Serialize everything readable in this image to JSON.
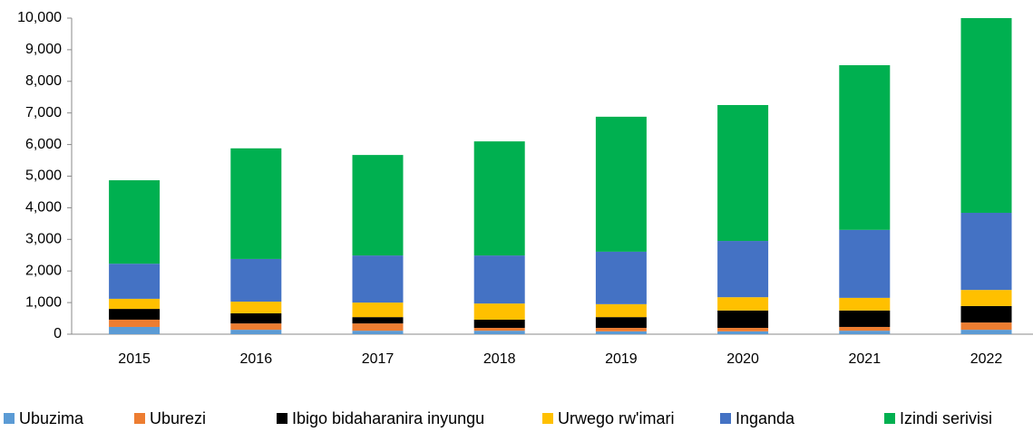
{
  "chart_data": {
    "type": "stacked_bar",
    "categories": [
      "2015",
      "2016",
      "2017",
      "2018",
      "2019",
      "2020",
      "2021",
      "2022"
    ],
    "series": [
      {
        "name": "Ubuzima",
        "color": "#5b9bd5",
        "values": [
          230,
          140,
          110,
          110,
          90,
          90,
          110,
          140
        ]
      },
      {
        "name": "Uburezi",
        "color": "#ed7d31",
        "values": [
          230,
          200,
          230,
          90,
          110,
          110,
          120,
          230
        ]
      },
      {
        "name": "Ibigo bidaharanira inyungu",
        "color": "#000000",
        "values": [
          340,
          320,
          200,
          260,
          340,
          550,
          520,
          520
        ]
      },
      {
        "name": "Urwego rw'imari",
        "color": "#ffc000",
        "values": [
          320,
          370,
          460,
          510,
          410,
          420,
          400,
          510
        ]
      },
      {
        "name": "Inganda",
        "color": "#4472c4",
        "values": [
          1110,
          1350,
          1490,
          1520,
          1660,
          1780,
          2150,
          2440
        ]
      },
      {
        "name": "Izindi serivisi",
        "color": "#00b050",
        "values": [
          2640,
          3500,
          3180,
          3610,
          4270,
          4300,
          5210,
          6160
        ]
      }
    ],
    "ylim": [
      0,
      10000
    ],
    "yticks": [
      0,
      {
        "value": 1000,
        "label": "1,000"
      },
      {
        "value": 2000,
        "label": "2,000"
      },
      {
        "value": 3000,
        "label": "3,000"
      },
      {
        "value": 4000,
        "label": "4,000"
      },
      {
        "value": 5000,
        "label": "5,000"
      },
      {
        "value": 6000,
        "label": "6,000"
      },
      {
        "value": 7000,
        "label": "7,000"
      },
      {
        "value": 8000,
        "label": "8,000"
      },
      {
        "value": 9000,
        "label": "9,000"
      },
      {
        "value": 10000,
        "label": "10,000"
      }
    ],
    "legend": "bottom"
  }
}
